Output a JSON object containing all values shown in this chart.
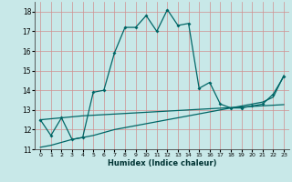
{
  "xlabel": "Humidex (Indice chaleur)",
  "bg_color": "#c8e8e8",
  "grid_color": "#d09090",
  "line_color": "#006666",
  "ylim": [
    11,
    18.5
  ],
  "xlim": [
    -0.5,
    23.5
  ],
  "yticks": [
    11,
    12,
    13,
    14,
    15,
    16,
    17,
    18
  ],
  "xticks": [
    0,
    1,
    2,
    3,
    4,
    5,
    6,
    7,
    8,
    9,
    10,
    11,
    12,
    13,
    14,
    15,
    16,
    17,
    18,
    19,
    20,
    21,
    22,
    23
  ],
  "series1_x": [
    0,
    1,
    2,
    3,
    4,
    5,
    6,
    7,
    8,
    9,
    10,
    11,
    12,
    13,
    14,
    15,
    16,
    17,
    18,
    19,
    20,
    21,
    22,
    23
  ],
  "series1_y": [
    12.5,
    11.7,
    12.6,
    11.5,
    11.6,
    13.9,
    14.0,
    15.9,
    17.2,
    17.2,
    17.8,
    17.0,
    18.1,
    17.3,
    17.4,
    14.1,
    14.4,
    13.3,
    13.1,
    13.1,
    13.2,
    13.3,
    13.8,
    14.7
  ],
  "series2_x": [
    0,
    1,
    2,
    3,
    4,
    5,
    6,
    7,
    8,
    9,
    10,
    11,
    12,
    13,
    14,
    15,
    16,
    17,
    18,
    19,
    20,
    21,
    22,
    23
  ],
  "series2_y": [
    12.5,
    12.55,
    12.6,
    12.65,
    12.7,
    12.73,
    12.76,
    12.79,
    12.82,
    12.85,
    12.88,
    12.91,
    12.94,
    12.97,
    13.0,
    13.03,
    13.06,
    13.09,
    13.12,
    13.15,
    13.18,
    13.21,
    13.24,
    13.27
  ],
  "series3_x": [
    0,
    1,
    2,
    3,
    4,
    5,
    6,
    7,
    8,
    9,
    10,
    11,
    12,
    13,
    14,
    15,
    16,
    17,
    18,
    19,
    20,
    21,
    22,
    23
  ],
  "series3_y": [
    11.1,
    11.2,
    11.35,
    11.5,
    11.6,
    11.7,
    11.85,
    12.0,
    12.1,
    12.2,
    12.3,
    12.4,
    12.5,
    12.6,
    12.7,
    12.8,
    12.9,
    13.0,
    13.1,
    13.2,
    13.3,
    13.4,
    13.65,
    14.75
  ]
}
